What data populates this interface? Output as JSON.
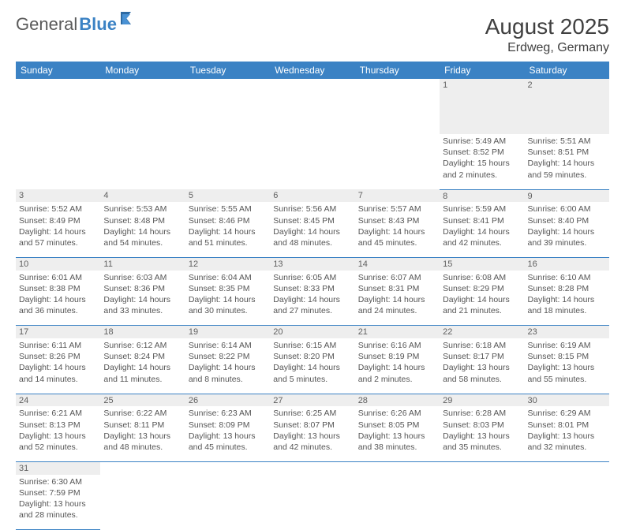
{
  "logo": {
    "text1": "General",
    "text2": "Blue"
  },
  "title": "August 2025",
  "location": "Erdweg, Germany",
  "colors": {
    "header_bg": "#3b82c4",
    "header_text": "#ffffff",
    "daynum_bg": "#eeeeee",
    "border": "#3b82c4",
    "text": "#555555"
  },
  "weekdays": [
    "Sunday",
    "Monday",
    "Tuesday",
    "Wednesday",
    "Thursday",
    "Friday",
    "Saturday"
  ],
  "weeks": [
    [
      null,
      null,
      null,
      null,
      null,
      {
        "n": "1",
        "sunrise": "5:49 AM",
        "sunset": "8:52 PM",
        "daylight": "15 hours and 2 minutes."
      },
      {
        "n": "2",
        "sunrise": "5:51 AM",
        "sunset": "8:51 PM",
        "daylight": "14 hours and 59 minutes."
      }
    ],
    [
      {
        "n": "3",
        "sunrise": "5:52 AM",
        "sunset": "8:49 PM",
        "daylight": "14 hours and 57 minutes."
      },
      {
        "n": "4",
        "sunrise": "5:53 AM",
        "sunset": "8:48 PM",
        "daylight": "14 hours and 54 minutes."
      },
      {
        "n": "5",
        "sunrise": "5:55 AM",
        "sunset": "8:46 PM",
        "daylight": "14 hours and 51 minutes."
      },
      {
        "n": "6",
        "sunrise": "5:56 AM",
        "sunset": "8:45 PM",
        "daylight": "14 hours and 48 minutes."
      },
      {
        "n": "7",
        "sunrise": "5:57 AM",
        "sunset": "8:43 PM",
        "daylight": "14 hours and 45 minutes."
      },
      {
        "n": "8",
        "sunrise": "5:59 AM",
        "sunset": "8:41 PM",
        "daylight": "14 hours and 42 minutes."
      },
      {
        "n": "9",
        "sunrise": "6:00 AM",
        "sunset": "8:40 PM",
        "daylight": "14 hours and 39 minutes."
      }
    ],
    [
      {
        "n": "10",
        "sunrise": "6:01 AM",
        "sunset": "8:38 PM",
        "daylight": "14 hours and 36 minutes."
      },
      {
        "n": "11",
        "sunrise": "6:03 AM",
        "sunset": "8:36 PM",
        "daylight": "14 hours and 33 minutes."
      },
      {
        "n": "12",
        "sunrise": "6:04 AM",
        "sunset": "8:35 PM",
        "daylight": "14 hours and 30 minutes."
      },
      {
        "n": "13",
        "sunrise": "6:05 AM",
        "sunset": "8:33 PM",
        "daylight": "14 hours and 27 minutes."
      },
      {
        "n": "14",
        "sunrise": "6:07 AM",
        "sunset": "8:31 PM",
        "daylight": "14 hours and 24 minutes."
      },
      {
        "n": "15",
        "sunrise": "6:08 AM",
        "sunset": "8:29 PM",
        "daylight": "14 hours and 21 minutes."
      },
      {
        "n": "16",
        "sunrise": "6:10 AM",
        "sunset": "8:28 PM",
        "daylight": "14 hours and 18 minutes."
      }
    ],
    [
      {
        "n": "17",
        "sunrise": "6:11 AM",
        "sunset": "8:26 PM",
        "daylight": "14 hours and 14 minutes."
      },
      {
        "n": "18",
        "sunrise": "6:12 AM",
        "sunset": "8:24 PM",
        "daylight": "14 hours and 11 minutes."
      },
      {
        "n": "19",
        "sunrise": "6:14 AM",
        "sunset": "8:22 PM",
        "daylight": "14 hours and 8 minutes."
      },
      {
        "n": "20",
        "sunrise": "6:15 AM",
        "sunset": "8:20 PM",
        "daylight": "14 hours and 5 minutes."
      },
      {
        "n": "21",
        "sunrise": "6:16 AM",
        "sunset": "8:19 PM",
        "daylight": "14 hours and 2 minutes."
      },
      {
        "n": "22",
        "sunrise": "6:18 AM",
        "sunset": "8:17 PM",
        "daylight": "13 hours and 58 minutes."
      },
      {
        "n": "23",
        "sunrise": "6:19 AM",
        "sunset": "8:15 PM",
        "daylight": "13 hours and 55 minutes."
      }
    ],
    [
      {
        "n": "24",
        "sunrise": "6:21 AM",
        "sunset": "8:13 PM",
        "daylight": "13 hours and 52 minutes."
      },
      {
        "n": "25",
        "sunrise": "6:22 AM",
        "sunset": "8:11 PM",
        "daylight": "13 hours and 48 minutes."
      },
      {
        "n": "26",
        "sunrise": "6:23 AM",
        "sunset": "8:09 PM",
        "daylight": "13 hours and 45 minutes."
      },
      {
        "n": "27",
        "sunrise": "6:25 AM",
        "sunset": "8:07 PM",
        "daylight": "13 hours and 42 minutes."
      },
      {
        "n": "28",
        "sunrise": "6:26 AM",
        "sunset": "8:05 PM",
        "daylight": "13 hours and 38 minutes."
      },
      {
        "n": "29",
        "sunrise": "6:28 AM",
        "sunset": "8:03 PM",
        "daylight": "13 hours and 35 minutes."
      },
      {
        "n": "30",
        "sunrise": "6:29 AM",
        "sunset": "8:01 PM",
        "daylight": "13 hours and 32 minutes."
      }
    ],
    [
      {
        "n": "31",
        "sunrise": "6:30 AM",
        "sunset": "7:59 PM",
        "daylight": "13 hours and 28 minutes."
      },
      null,
      null,
      null,
      null,
      null,
      null
    ]
  ]
}
